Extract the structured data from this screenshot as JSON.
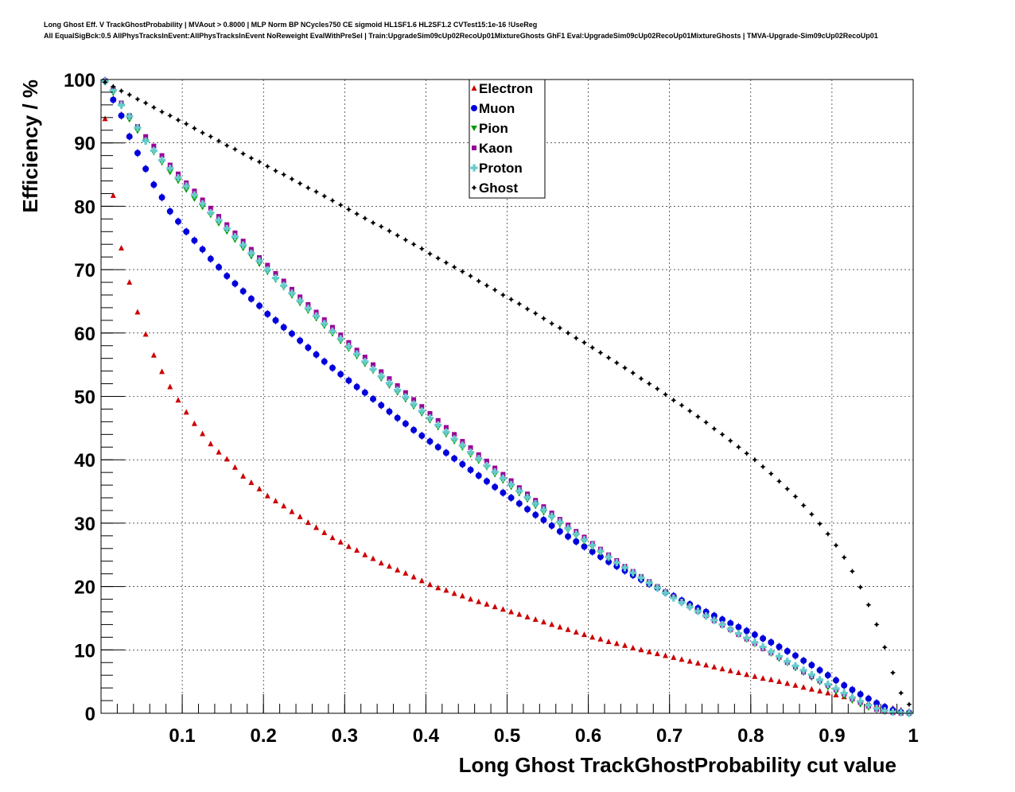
{
  "header": {
    "line1": "Long Ghost Eff. V TrackGhostProbability | MVAout > 0.8000 | MLP Norm BP NCycles750 CE sigmoid HL1SF1.6 HL2SF1.2 CVTest15:1e-16 !UseReg",
    "line2": "All EqualSigBck:0.5 AllPhysTracksInEvent:AllPhysTracksInEvent NoReweight EvalWithPreSel | Train:UpgradeSim09cUp02RecoUp01MixtureGhosts GhF1 Eval:UpgradeSim09cUp02RecoUp01MixtureGhosts | TMVA-Upgrade-Sim09cUp02RecoUp01"
  },
  "chart_data": {
    "type": "scatter",
    "xlabel": "Long Ghost TrackGhostProbability cut value",
    "ylabel": "Efficiency / %",
    "xlim": [
      0.0,
      1.0
    ],
    "ylim": [
      0,
      100
    ],
    "x_ticks": [
      "0.1",
      "0.2",
      "0.3",
      "0.4",
      "0.5",
      "0.6",
      "0.7",
      "0.8",
      "0.9",
      "1"
    ],
    "y_ticks": [
      "0",
      "10",
      "20",
      "30",
      "40",
      "50",
      "60",
      "70",
      "80",
      "90",
      "100"
    ],
    "grid": true,
    "legend_position": "top-center",
    "x": [
      0.005,
      0.015,
      0.025,
      0.035,
      0.045,
      0.055,
      0.065,
      0.075,
      0.085,
      0.095,
      0.105,
      0.115,
      0.125,
      0.135,
      0.145,
      0.155,
      0.165,
      0.175,
      0.185,
      0.195,
      0.205,
      0.215,
      0.225,
      0.235,
      0.245,
      0.255,
      0.265,
      0.275,
      0.285,
      0.295,
      0.305,
      0.315,
      0.325,
      0.335,
      0.345,
      0.355,
      0.365,
      0.375,
      0.385,
      0.395,
      0.405,
      0.415,
      0.425,
      0.435,
      0.445,
      0.455,
      0.465,
      0.475,
      0.485,
      0.495,
      0.505,
      0.515,
      0.525,
      0.535,
      0.545,
      0.555,
      0.565,
      0.575,
      0.585,
      0.595,
      0.605,
      0.615,
      0.625,
      0.635,
      0.645,
      0.655,
      0.665,
      0.675,
      0.685,
      0.695,
      0.705,
      0.715,
      0.725,
      0.735,
      0.745,
      0.755,
      0.765,
      0.775,
      0.785,
      0.795,
      0.805,
      0.815,
      0.825,
      0.835,
      0.845,
      0.855,
      0.865,
      0.875,
      0.885,
      0.895,
      0.905,
      0.915,
      0.925,
      0.935,
      0.945,
      0.955,
      0.965,
      0.975,
      0.985,
      0.995
    ],
    "series": [
      {
        "name": "Electron",
        "color": "#cc0000",
        "marker": "triangle-up",
        "values": [
          93.8,
          81.7,
          73.4,
          68.0,
          63.3,
          59.8,
          56.5,
          53.9,
          51.5,
          49.4,
          47.5,
          45.7,
          44.1,
          42.5,
          41.2,
          40.1,
          38.8,
          37.4,
          36.4,
          35.4,
          34.3,
          33.5,
          32.7,
          31.8,
          31.0,
          30.1,
          29.3,
          28.5,
          27.7,
          27.0,
          26.3,
          25.7,
          25.0,
          24.4,
          23.7,
          23.2,
          22.6,
          22.1,
          21.5,
          20.9,
          20.3,
          19.8,
          19.4,
          18.9,
          18.5,
          18.0,
          17.6,
          17.2,
          16.8,
          16.4,
          16.0,
          15.6,
          15.2,
          14.8,
          14.4,
          14.0,
          13.6,
          13.2,
          12.8,
          12.4,
          12.0,
          11.7,
          11.3,
          11.0,
          10.7,
          10.3,
          10.0,
          9.7,
          9.4,
          9.1,
          8.8,
          8.5,
          8.2,
          7.9,
          7.6,
          7.3,
          7.0,
          6.7,
          6.4,
          6.1,
          5.8,
          5.5,
          5.3,
          5.0,
          4.7,
          4.4,
          4.1,
          3.8,
          3.5,
          3.2,
          2.9,
          2.6,
          2.3,
          2.0,
          1.7,
          1.4,
          1.1,
          0.8,
          0.5,
          0.2
        ]
      },
      {
        "name": "Muon",
        "color": "#0000dd",
        "marker": "circle",
        "values": [
          99.8,
          96.8,
          94.3,
          91.0,
          88.4,
          85.9,
          83.4,
          81.4,
          79.2,
          77.6,
          76.0,
          74.6,
          73.2,
          71.7,
          70.4,
          69.0,
          67.8,
          66.6,
          65.4,
          64.3,
          63.0,
          62.0,
          60.9,
          59.9,
          58.8,
          57.7,
          56.6,
          55.5,
          54.5,
          53.5,
          52.5,
          51.5,
          50.6,
          49.6,
          48.6,
          47.6,
          46.6,
          45.7,
          44.7,
          43.8,
          42.9,
          42.0,
          41.1,
          40.2,
          39.3,
          38.4,
          37.5,
          36.6,
          35.7,
          34.8,
          34.0,
          33.1,
          32.2,
          31.3,
          30.5,
          29.6,
          28.7,
          27.9,
          27.1,
          26.3,
          25.5,
          24.7,
          23.9,
          23.2,
          22.5,
          21.8,
          21.1,
          20.4,
          19.8,
          19.1,
          18.5,
          17.8,
          17.2,
          16.6,
          16.0,
          15.4,
          14.8,
          14.2,
          13.6,
          13.0,
          12.4,
          11.8,
          11.2,
          10.5,
          9.8,
          9.1,
          8.3,
          7.6,
          6.8,
          6.0,
          5.2,
          4.4,
          3.7,
          3.0,
          2.3,
          1.6,
          1.0,
          0.5,
          0.2,
          0.1
        ]
      },
      {
        "name": "Pion",
        "color": "#009900",
        "marker": "triangle-down",
        "values": [
          99.6,
          97.9,
          95.8,
          93.7,
          91.9,
          90.2,
          88.5,
          86.9,
          85.4,
          84.0,
          82.6,
          81.2,
          79.9,
          78.6,
          77.3,
          76.0,
          74.7,
          73.4,
          72.1,
          70.9,
          69.6,
          68.4,
          67.2,
          65.9,
          64.7,
          63.5,
          62.3,
          61.1,
          59.9,
          58.7,
          57.5,
          56.3,
          55.1,
          54.0,
          52.8,
          51.7,
          50.6,
          49.5,
          48.4,
          47.3,
          46.2,
          45.1,
          44.0,
          42.9,
          41.9,
          40.8,
          39.8,
          38.8,
          37.7,
          36.7,
          35.7,
          34.7,
          33.7,
          32.7,
          31.7,
          30.8,
          29.8,
          28.9,
          28.0,
          27.1,
          26.2,
          25.3,
          24.4,
          23.6,
          22.8,
          22.0,
          21.2,
          20.4,
          19.7,
          18.9,
          18.2,
          17.4,
          16.7,
          16.0,
          15.2,
          14.5,
          13.8,
          13.1,
          12.4,
          11.6,
          10.9,
          10.2,
          9.4,
          8.6,
          7.9,
          7.1,
          6.4,
          5.6,
          4.9,
          4.1,
          3.4,
          2.7,
          2.0,
          1.4,
          0.9,
          0.5,
          0.2,
          0.1,
          0.0,
          0.0
        ]
      },
      {
        "name": "Kaon",
        "color": "#990099",
        "marker": "square",
        "values": [
          99.8,
          98.5,
          96.3,
          94.3,
          92.6,
          91.0,
          89.5,
          88.0,
          86.5,
          85.1,
          83.7,
          82.4,
          81.0,
          79.7,
          78.4,
          77.1,
          75.8,
          74.5,
          73.2,
          71.9,
          70.7,
          69.4,
          68.2,
          66.9,
          65.7,
          64.5,
          63.3,
          62.1,
          60.9,
          59.7,
          58.5,
          57.3,
          56.2,
          55.0,
          53.9,
          52.8,
          51.7,
          50.6,
          49.5,
          48.4,
          47.3,
          46.2,
          45.1,
          44.0,
          42.9,
          41.9,
          40.8,
          39.8,
          38.7,
          37.7,
          36.7,
          35.6,
          34.6,
          33.6,
          32.6,
          31.6,
          30.6,
          29.7,
          28.7,
          27.8,
          26.8,
          25.9,
          25.0,
          24.1,
          23.2,
          22.4,
          21.6,
          20.8,
          20.0,
          19.2,
          18.4,
          17.6,
          16.9,
          16.1,
          15.4,
          14.6,
          13.9,
          13.2,
          12.4,
          11.7,
          11.0,
          10.2,
          9.5,
          8.8,
          8.0,
          7.3,
          6.5,
          5.8,
          5.1,
          4.4,
          3.7,
          3.0,
          2.3,
          1.7,
          1.1,
          0.6,
          0.3,
          0.1,
          0.0,
          0.0
        ]
      },
      {
        "name": "Proton",
        "color": "#66cccc",
        "marker": "cross",
        "values": [
          99.7,
          98.3,
          96.0,
          94.2,
          92.4,
          90.3,
          88.8,
          87.3,
          86.0,
          84.5,
          83.2,
          81.8,
          80.4,
          79.0,
          77.8,
          76.5,
          75.2,
          73.9,
          72.6,
          71.4,
          70.0,
          68.7,
          67.5,
          66.3,
          65.1,
          63.9,
          62.7,
          61.5,
          60.3,
          59.1,
          57.9,
          56.7,
          55.5,
          54.3,
          53.2,
          52.1,
          51.0,
          49.9,
          48.8,
          47.7,
          46.6,
          45.5,
          44.4,
          43.3,
          42.3,
          41.2,
          40.2,
          39.1,
          38.1,
          37.1,
          36.1,
          35.1,
          34.1,
          33.1,
          32.1,
          31.1,
          30.2,
          29.2,
          28.3,
          27.4,
          26.5,
          25.6,
          24.7,
          23.8,
          23.0,
          22.2,
          21.4,
          20.6,
          19.8,
          19.0,
          18.2,
          17.5,
          16.8,
          16.1,
          15.4,
          14.7,
          14.0,
          13.3,
          12.6,
          11.9,
          11.2,
          10.5,
          9.7,
          9.0,
          8.2,
          7.5,
          6.8,
          6.1,
          5.3,
          4.6,
          3.9,
          3.2,
          2.5,
          1.9,
          1.3,
          0.8,
          0.4,
          0.2,
          0.1,
          0.0
        ]
      },
      {
        "name": "Ghost",
        "color": "#000000",
        "marker": "star",
        "values": [
          99.6,
          98.9,
          98.2,
          97.6,
          96.9,
          96.3,
          95.6,
          94.9,
          94.3,
          93.6,
          93.0,
          92.3,
          91.6,
          91.0,
          90.3,
          89.6,
          89.0,
          88.3,
          87.6,
          87.0,
          86.3,
          85.6,
          85.0,
          84.3,
          83.6,
          82.9,
          82.3,
          81.6,
          80.9,
          80.2,
          79.5,
          78.8,
          78.1,
          77.4,
          76.8,
          76.1,
          75.4,
          74.7,
          74.0,
          73.3,
          72.5,
          71.8,
          71.1,
          70.4,
          69.7,
          69.0,
          68.2,
          67.5,
          66.8,
          66.0,
          65.3,
          64.6,
          63.8,
          63.1,
          62.3,
          61.5,
          60.8,
          60.0,
          59.2,
          58.5,
          57.7,
          56.9,
          56.1,
          55.3,
          54.5,
          53.7,
          52.8,
          52.0,
          51.2,
          50.3,
          49.4,
          48.6,
          47.7,
          46.8,
          45.9,
          44.9,
          44.0,
          43.0,
          42.0,
          41.0,
          40.0,
          38.9,
          37.8,
          36.6,
          35.4,
          34.2,
          32.8,
          31.4,
          29.9,
          28.3,
          26.5,
          24.6,
          22.4,
          19.9,
          17.1,
          14.0,
          10.4,
          6.4,
          3.2,
          1.4
        ]
      }
    ]
  }
}
